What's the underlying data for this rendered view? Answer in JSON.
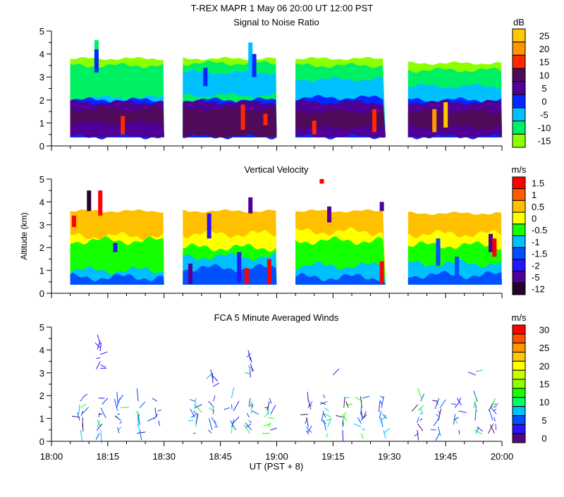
{
  "header": {
    "title": "T-REX   MAPR   1 May 06   20:00 UT   12:00   PST"
  },
  "x_axis": {
    "label": "UT  (PST + 8)",
    "ticks": [
      "18:00",
      "18:15",
      "18:30",
      "18:45",
      "19:00",
      "19:15",
      "19:30",
      "19:45",
      "20:00"
    ],
    "range_minutes_after_1800": [
      0,
      120
    ]
  },
  "chart_data": [
    {
      "type": "heatmap",
      "title": "Signal to Noise Ratio",
      "ylabel": "",
      "ylim": [
        0,
        5
      ],
      "yticks": [
        "0",
        "1",
        "2",
        "3",
        "4",
        "5"
      ],
      "colorbar": {
        "unit": "dB",
        "labels": [
          "25",
          "20",
          "15",
          "10",
          "5",
          "0",
          "-5",
          "-10",
          "-15"
        ],
        "colors": [
          "#ffc800",
          "#ff9600",
          "#ff2800",
          "#500a5a",
          "#500096",
          "#0028ff",
          "#00c0ff",
          "#00f064",
          "#8cff00"
        ]
      },
      "data_blocks": [
        {
          "start": "18:05",
          "end": "18:30",
          "top_km": 3.8,
          "bands": [
            {
              "top": 3.8,
              "level": -15
            },
            {
              "top": 3.5,
              "level": -10
            },
            {
              "top": 2.1,
              "level": -5
            },
            {
              "top": 2.0,
              "level": 0
            },
            {
              "top": 1.9,
              "level": 5
            },
            {
              "top": 1.6,
              "level": 10
            },
            {
              "top": 1.0,
              "level": 5
            },
            {
              "top": 0.4,
              "level": 0
            }
          ],
          "features": [
            {
              "time": "18:12",
              "from": 3.1,
              "to": 4.6,
              "level": -10
            },
            {
              "time": "18:12",
              "from": 3.2,
              "to": 4.2,
              "level": 0
            },
            {
              "time": "18:19",
              "from": 0.5,
              "to": 1.3,
              "level": 15
            }
          ]
        },
        {
          "start": "18:35",
          "end": "19:00",
          "top_km": 3.8,
          "bands": [
            {
              "top": 3.8,
              "level": -15
            },
            {
              "top": 3.6,
              "level": -10
            },
            {
              "top": 3.2,
              "level": -5
            },
            {
              "top": 2.2,
              "level": -10
            },
            {
              "top": 2.0,
              "level": 0
            },
            {
              "top": 1.9,
              "level": 5
            },
            {
              "top": 1.6,
              "level": 10
            },
            {
              "top": 0.8,
              "level": 10
            },
            {
              "top": 0.4,
              "level": 0
            }
          ],
          "features": [
            {
              "time": "18:41",
              "from": 2.6,
              "to": 3.4,
              "level": 0
            },
            {
              "time": "18:53",
              "from": 2.9,
              "to": 4.5,
              "level": -5
            },
            {
              "time": "18:54",
              "from": 3.0,
              "to": 4.0,
              "level": 0
            },
            {
              "time": "18:51",
              "from": 0.7,
              "to": 1.8,
              "level": 15
            },
            {
              "time": "18:57",
              "from": 0.9,
              "to": 1.4,
              "level": 15
            }
          ]
        },
        {
          "start": "19:05",
          "end": "19:29",
          "top_km": 3.8,
          "bands": [
            {
              "top": 3.8,
              "level": -15
            },
            {
              "top": 3.5,
              "level": -10
            },
            {
              "top": 2.9,
              "level": -5
            },
            {
              "top": 2.1,
              "level": 0
            },
            {
              "top": 1.9,
              "level": 5
            },
            {
              "top": 1.5,
              "level": 10
            },
            {
              "top": 0.8,
              "level": 5
            },
            {
              "top": 0.4,
              "level": 0
            }
          ],
          "features": [
            {
              "time": "19:10",
              "from": 0.5,
              "to": 1.1,
              "level": 15
            },
            {
              "time": "19:26",
              "from": 0.6,
              "to": 1.6,
              "level": 15
            }
          ]
        },
        {
          "start": "19:35",
          "end": "20:00",
          "top_km": 3.6,
          "bands": [
            {
              "top": 3.6,
              "level": -15
            },
            {
              "top": 3.3,
              "level": -10
            },
            {
              "top": 2.6,
              "level": -5
            },
            {
              "top": 2.0,
              "level": 0
            },
            {
              "top": 1.9,
              "level": 5
            },
            {
              "top": 1.5,
              "level": 10
            },
            {
              "top": 0.8,
              "level": 5
            },
            {
              "top": 0.4,
              "level": 0
            }
          ],
          "features": [
            {
              "time": "19:42",
              "from": 0.6,
              "to": 1.6,
              "level": 20
            },
            {
              "time": "19:45",
              "from": 0.8,
              "to": 1.9,
              "level": 25
            }
          ]
        }
      ]
    },
    {
      "type": "heatmap",
      "title": "Vertical Velocity",
      "ylabel": "Altitude (km)",
      "ylim": [
        0,
        5
      ],
      "yticks": [
        "0",
        "1",
        "2",
        "3",
        "4",
        "5"
      ],
      "colorbar": {
        "unit": "m/s",
        "labels": [
          "1.5",
          "1",
          "0.5",
          "0",
          "-0.5",
          "-1",
          "-1.5",
          "-2",
          "-5",
          "-12"
        ],
        "colors": [
          "#ff0000",
          "#ff5a00",
          "#ffc000",
          "#ffff00",
          "#14ff00",
          "#00c0ff",
          "#0050ff",
          "#2814ff",
          "#500096",
          "#28002d"
        ]
      },
      "data_blocks": [
        {
          "start": "18:05",
          "end": "18:30",
          "top_km": 3.6,
          "bands": [
            {
              "top": 3.6,
              "level": 0.5
            },
            {
              "top": 2.5,
              "level": 0
            },
            {
              "top": 2.3,
              "level": -0.5
            },
            {
              "top": 1.0,
              "level": -1
            },
            {
              "top": 0.7,
              "level": -1.5
            }
          ],
          "features": [
            {
              "time": "18:10",
              "from": 3.6,
              "to": 4.5,
              "level": -12
            },
            {
              "time": "18:13",
              "from": 3.4,
              "to": 4.5,
              "level": 1.5
            },
            {
              "time": "18:06",
              "from": 2.9,
              "to": 3.4,
              "level": 1.5
            },
            {
              "time": "18:17",
              "from": 1.8,
              "to": 2.2,
              "level": -2
            }
          ]
        },
        {
          "start": "18:35",
          "end": "19:00",
          "top_km": 3.6,
          "bands": [
            {
              "top": 3.6,
              "level": 0.5
            },
            {
              "top": 2.6,
              "level": 0
            },
            {
              "top": 2.0,
              "level": -0.5
            },
            {
              "top": 1.6,
              "level": -1
            },
            {
              "top": 1.1,
              "level": -1.5
            }
          ],
          "features": [
            {
              "time": "18:53",
              "from": 3.5,
              "to": 4.2,
              "level": -5
            },
            {
              "time": "18:42",
              "from": 2.4,
              "to": 3.5,
              "level": -2
            },
            {
              "time": "18:50",
              "from": 0.5,
              "to": 1.8,
              "level": -2
            },
            {
              "time": "18:52",
              "from": 0.4,
              "to": 1.1,
              "level": 1.5
            },
            {
              "time": "18:58",
              "from": 0.4,
              "to": 1.5,
              "level": 1.5
            },
            {
              "time": "18:37",
              "from": 0.4,
              "to": 1.3,
              "level": -5
            }
          ]
        },
        {
          "start": "19:05",
          "end": "19:29",
          "top_km": 3.6,
          "bands": [
            {
              "top": 3.6,
              "level": 0.5
            },
            {
              "top": 2.7,
              "level": 0
            },
            {
              "top": 2.3,
              "level": -0.5
            },
            {
              "top": 1.2,
              "level": -1
            },
            {
              "top": 0.7,
              "level": -1.5
            }
          ],
          "features": [
            {
              "time": "19:14",
              "from": 3.1,
              "to": 3.8,
              "level": -5
            },
            {
              "time": "19:28",
              "from": 0.4,
              "to": 1.4,
              "level": 1.5
            },
            {
              "time": "19:28",
              "from": 3.6,
              "to": 4.0,
              "level": -5
            },
            {
              "time": "19:12",
              "from": 4.8,
              "to": 5.0,
              "level": 1.5
            }
          ]
        },
        {
          "start": "19:35",
          "end": "20:00",
          "top_km": 3.5,
          "bands": [
            {
              "top": 3.5,
              "level": 0.5
            },
            {
              "top": 2.6,
              "level": 0
            },
            {
              "top": 2.1,
              "level": -0.5
            },
            {
              "top": 1.3,
              "level": -1
            },
            {
              "top": 0.8,
              "level": -1.5
            }
          ],
          "features": [
            {
              "time": "19:43",
              "from": 1.2,
              "to": 2.4,
              "level": -1.5
            },
            {
              "time": "19:48",
              "from": 0.4,
              "to": 1.6,
              "level": -1.5
            },
            {
              "time": "19:57",
              "from": 1.8,
              "to": 2.6,
              "level": -5
            },
            {
              "time": "19:58",
              "from": 1.6,
              "to": 2.4,
              "level": 1.5
            }
          ]
        }
      ]
    },
    {
      "type": "scatter",
      "title": "FCA 5 Minute Averaged Winds",
      "ylabel": "",
      "ylim": [
        0,
        5
      ],
      "yticks": [
        "0",
        "1",
        "2",
        "3",
        "4",
        "5"
      ],
      "colorbar": {
        "unit": "m/s",
        "labels": [
          "30",
          "25",
          "20",
          "15",
          "10",
          "5",
          "0"
        ],
        "colors": [
          "#ff0000",
          "#ff5000",
          "#ff9600",
          "#ffc800",
          "#ffff00",
          "#c8ff00",
          "#8cff00",
          "#14ff00",
          "#00ff64",
          "#00c0ff",
          "#0050ff",
          "#2814ff",
          "#500a78"
        ]
      },
      "profile_times": [
        "18:08",
        "18:13",
        "18:18",
        "18:23",
        "18:28",
        "18:38",
        "18:43",
        "18:48",
        "18:53",
        "18:58",
        "19:08",
        "19:13",
        "19:18",
        "19:23",
        "19:28",
        "19:38",
        "19:43",
        "19:48",
        "19:53",
        "19:58"
      ],
      "profile_altitude_range_km": [
        0.3,
        2.0
      ],
      "upper_winds": [
        {
          "time": "18:13",
          "from": 3.2,
          "to": 4.5
        },
        {
          "time": "18:43",
          "from": 2.4,
          "to": 3.0
        },
        {
          "time": "18:53",
          "from": 2.8,
          "to": 3.9
        },
        {
          "time": "19:15",
          "from": 2.9,
          "to": 3.0
        },
        {
          "time": "19:53",
          "from": 2.9,
          "to": 3.1
        }
      ]
    }
  ]
}
